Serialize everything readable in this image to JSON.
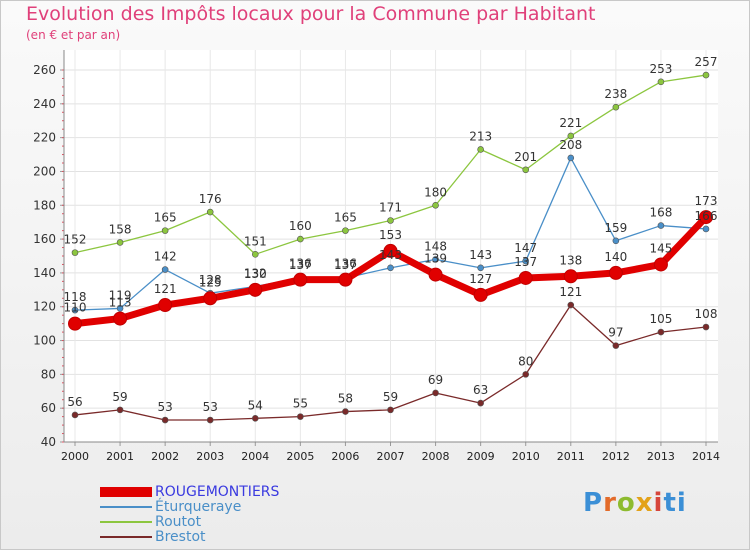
{
  "header": {
    "title": "Evolution des Impôts locaux pour la Commune par Habitant",
    "subtitle": "(en € et par an)"
  },
  "brand": {
    "logo_text": "Proxiti",
    "colors": [
      "#3b8fd6",
      "#e36b2a",
      "#8dbb2f",
      "#e3a21a",
      "#d6453b",
      "#3b8fd6"
    ]
  },
  "chart_data": {
    "type": "line",
    "title": "Evolution des Impôts locaux pour la Commune par Habitant",
    "subtitle": "(en € et par an)",
    "xlabel": "",
    "ylabel": "",
    "x": [
      "2000",
      "2001",
      "2002",
      "2003",
      "2004",
      "2005",
      "2006",
      "2007",
      "2008",
      "2009",
      "2010",
      "2011",
      "2012",
      "2013",
      "2014"
    ],
    "ylim": [
      40,
      260
    ],
    "yticks": [
      40,
      60,
      80,
      100,
      120,
      140,
      160,
      180,
      200,
      220,
      240,
      260
    ],
    "grid": true,
    "legend_position": "bottom-left",
    "series": [
      {
        "name": "ROUGEMONTIERS",
        "color": "#e00000",
        "values": [
          110,
          113,
          121,
          125,
          130,
          136,
          136,
          153,
          139,
          127,
          137,
          138,
          140,
          145,
          173
        ]
      },
      {
        "name": "Éturqueraye",
        "color": "#4a8fc8",
        "values": [
          118,
          119,
          142,
          128,
          132,
          137,
          137,
          143,
          148,
          143,
          147,
          208,
          159,
          168,
          166
        ]
      },
      {
        "name": "Routot",
        "color": "#8cc63f",
        "values": [
          152,
          158,
          165,
          176,
          151,
          160,
          165,
          171,
          180,
          213,
          201,
          221,
          238,
          253,
          257
        ]
      },
      {
        "name": "Brestot",
        "color": "#7a2a2a",
        "values": [
          56,
          59,
          53,
          53,
          54,
          55,
          58,
          59,
          69,
          63,
          80,
          121,
          97,
          105,
          108
        ]
      }
    ],
    "point_labels": [
      [
        "110",
        "113",
        "121",
        "125",
        "130",
        "136",
        "136",
        "153",
        "139",
        "127",
        "137",
        "138",
        "140",
        "145",
        "173"
      ],
      [
        "118",
        "119",
        "142",
        "128",
        "132",
        "137",
        "137",
        "143",
        "148",
        "143",
        "147",
        "208",
        "159",
        "168",
        "166"
      ],
      [
        "152",
        "158",
        "165",
        "176",
        "151",
        "160",
        "165",
        "171",
        "180",
        "213",
        "201",
        "221",
        "238",
        "253",
        "257"
      ],
      [
        "56",
        "59",
        "53",
        "53",
        "54",
        "55",
        "58",
        "59",
        "69",
        "63",
        "80",
        "121",
        "97",
        "105",
        "108"
      ]
    ]
  }
}
